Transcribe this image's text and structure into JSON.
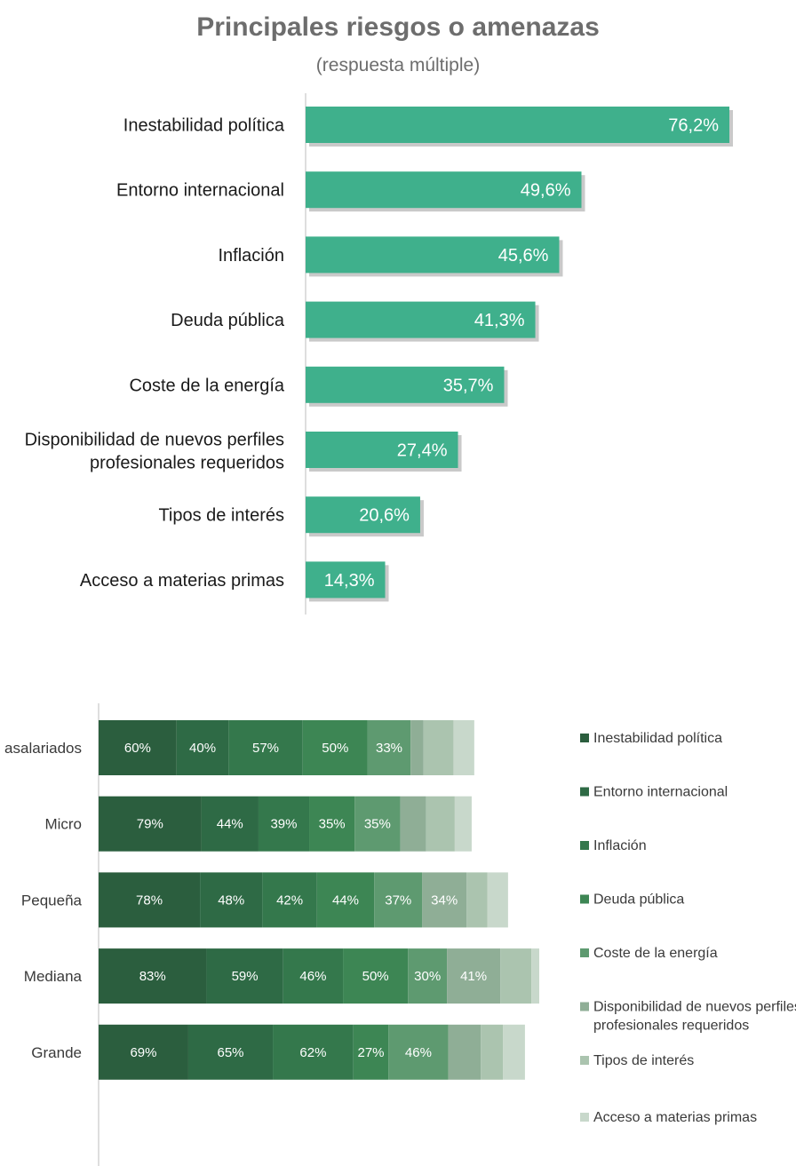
{
  "chart_data": [
    {
      "type": "bar",
      "orientation": "horizontal",
      "title": "Principales riesgos o amenazas",
      "subtitle": "(respuesta múltiple)",
      "categories": [
        "Inestabilidad política",
        "Entorno internacional",
        "Inflación",
        "Deuda pública",
        "Coste de la energía",
        "Disponibilidad de nuevos perfiles profesionales requeridos",
        "Tipos de interés",
        "Acceso a materias primas"
      ],
      "values": [
        76.2,
        49.6,
        45.6,
        41.3,
        35.7,
        27.4,
        20.6,
        14.3
      ],
      "value_labels": [
        "76,2%",
        "49,6%",
        "45,6%",
        "41,3%",
        "35,7%",
        "27,4%",
        "20,6%",
        "14,3%"
      ],
      "xlim": [
        0,
        100
      ],
      "bar_color": "#3fb08c",
      "grid": false
    },
    {
      "type": "bar",
      "orientation": "horizontal",
      "stacked": true,
      "categories": [
        "asalariados",
        "Micro",
        "Pequeña",
        "Mediana",
        "Grande"
      ],
      "series": [
        {
          "name": "Inestabilidad política",
          "color": "#2b5e3e",
          "values": [
            60,
            79,
            78,
            83,
            69
          ],
          "labels": [
            "60%",
            "79%",
            "78%",
            "83%",
            "69%"
          ]
        },
        {
          "name": "Entorno internacional",
          "color": "#2e6a45",
          "values": [
            40,
            44,
            48,
            59,
            65
          ],
          "labels": [
            "40%",
            "44%",
            "48%",
            "59%",
            "65%"
          ]
        },
        {
          "name": "Inflación",
          "color": "#34784c",
          "values": [
            57,
            39,
            42,
            46,
            62
          ],
          "labels": [
            "57%",
            "39%",
            "42%",
            "46%",
            "62%"
          ]
        },
        {
          "name": "Deuda pública",
          "color": "#3d8654",
          "values": [
            50,
            35,
            44,
            50,
            27
          ],
          "labels": [
            "50%",
            "35%",
            "44%",
            "50%",
            "27%"
          ]
        },
        {
          "name": "Coste de la energía",
          "color": "#5e9a70",
          "values": [
            33,
            35,
            37,
            30,
            46
          ],
          "labels": [
            "33%",
            "35%",
            "37%",
            "30%",
            "46%"
          ]
        },
        {
          "name": "Disponibilidad de nuevos perfiles profesionales requeridos",
          "color": "#8fae96",
          "values": [
            10,
            20,
            34,
            41,
            25
          ],
          "labels": [
            "",
            "",
            "34%",
            "41%",
            ""
          ]
        },
        {
          "name": "Tipos de interés",
          "color": "#abc4af",
          "values": [
            23,
            22,
            16,
            24,
            17
          ],
          "labels": [
            "",
            "",
            "",
            "",
            ""
          ]
        },
        {
          "name": "Acceso a materias primas",
          "color": "#c8d8cb",
          "values": [
            16,
            13,
            16,
            6,
            17
          ],
          "labels": [
            "",
            "",
            "",
            "",
            ""
          ]
        }
      ],
      "legend": "right",
      "grid": false
    }
  ]
}
